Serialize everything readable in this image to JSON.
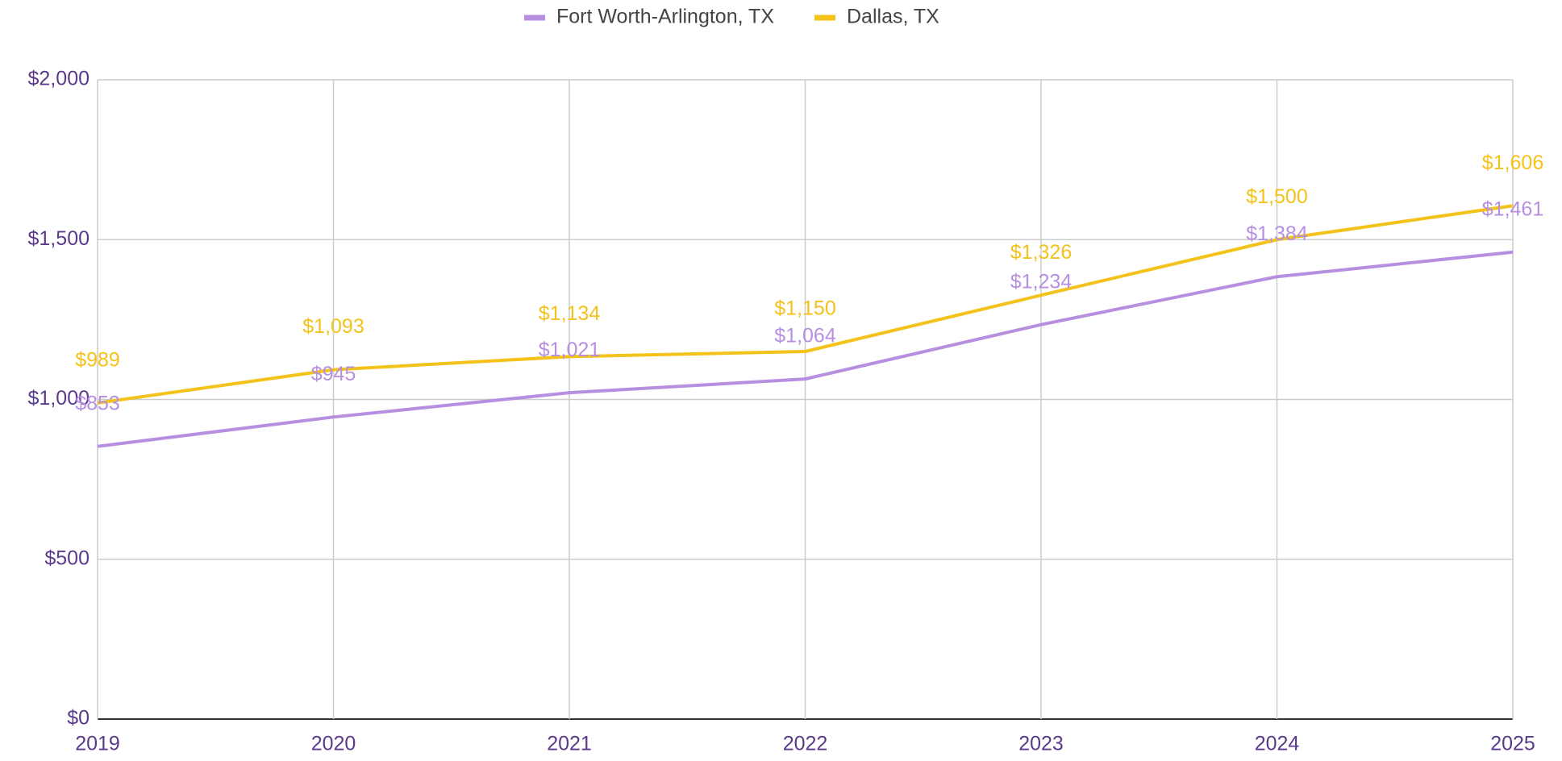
{
  "chart_data": {
    "type": "line",
    "categories": [
      "2019",
      "2020",
      "2021",
      "2022",
      "2023",
      "2024",
      "2025"
    ],
    "series": [
      {
        "name": "Fort Worth-Arlington, TX",
        "color": "#b78fe0",
        "values": [
          853,
          945,
          1021,
          1064,
          1234,
          1384,
          1461
        ],
        "value_labels": [
          "$853",
          "$945",
          "$1,021",
          "$1,064",
          "$1,234",
          "$1,384",
          "$1,461"
        ]
      },
      {
        "name": "Dallas, TX",
        "color": "#f3c21b",
        "values": [
          989,
          1093,
          1134,
          1150,
          1326,
          1500,
          1606
        ],
        "value_labels": [
          "$989",
          "$1,093",
          "$1,134",
          "$1,150",
          "$1,326",
          "$1,500",
          "$1,606"
        ]
      }
    ],
    "ylim": [
      0,
      2000
    ],
    "yticks": [
      {
        "value": 0,
        "label": "$0"
      },
      {
        "value": 500,
        "label": "$500"
      },
      {
        "value": 1000,
        "label": "$1,000"
      },
      {
        "value": 1500,
        "label": "$1,500"
      },
      {
        "value": 2000,
        "label": "$2,000"
      }
    ],
    "grid": true,
    "legend": "top"
  }
}
